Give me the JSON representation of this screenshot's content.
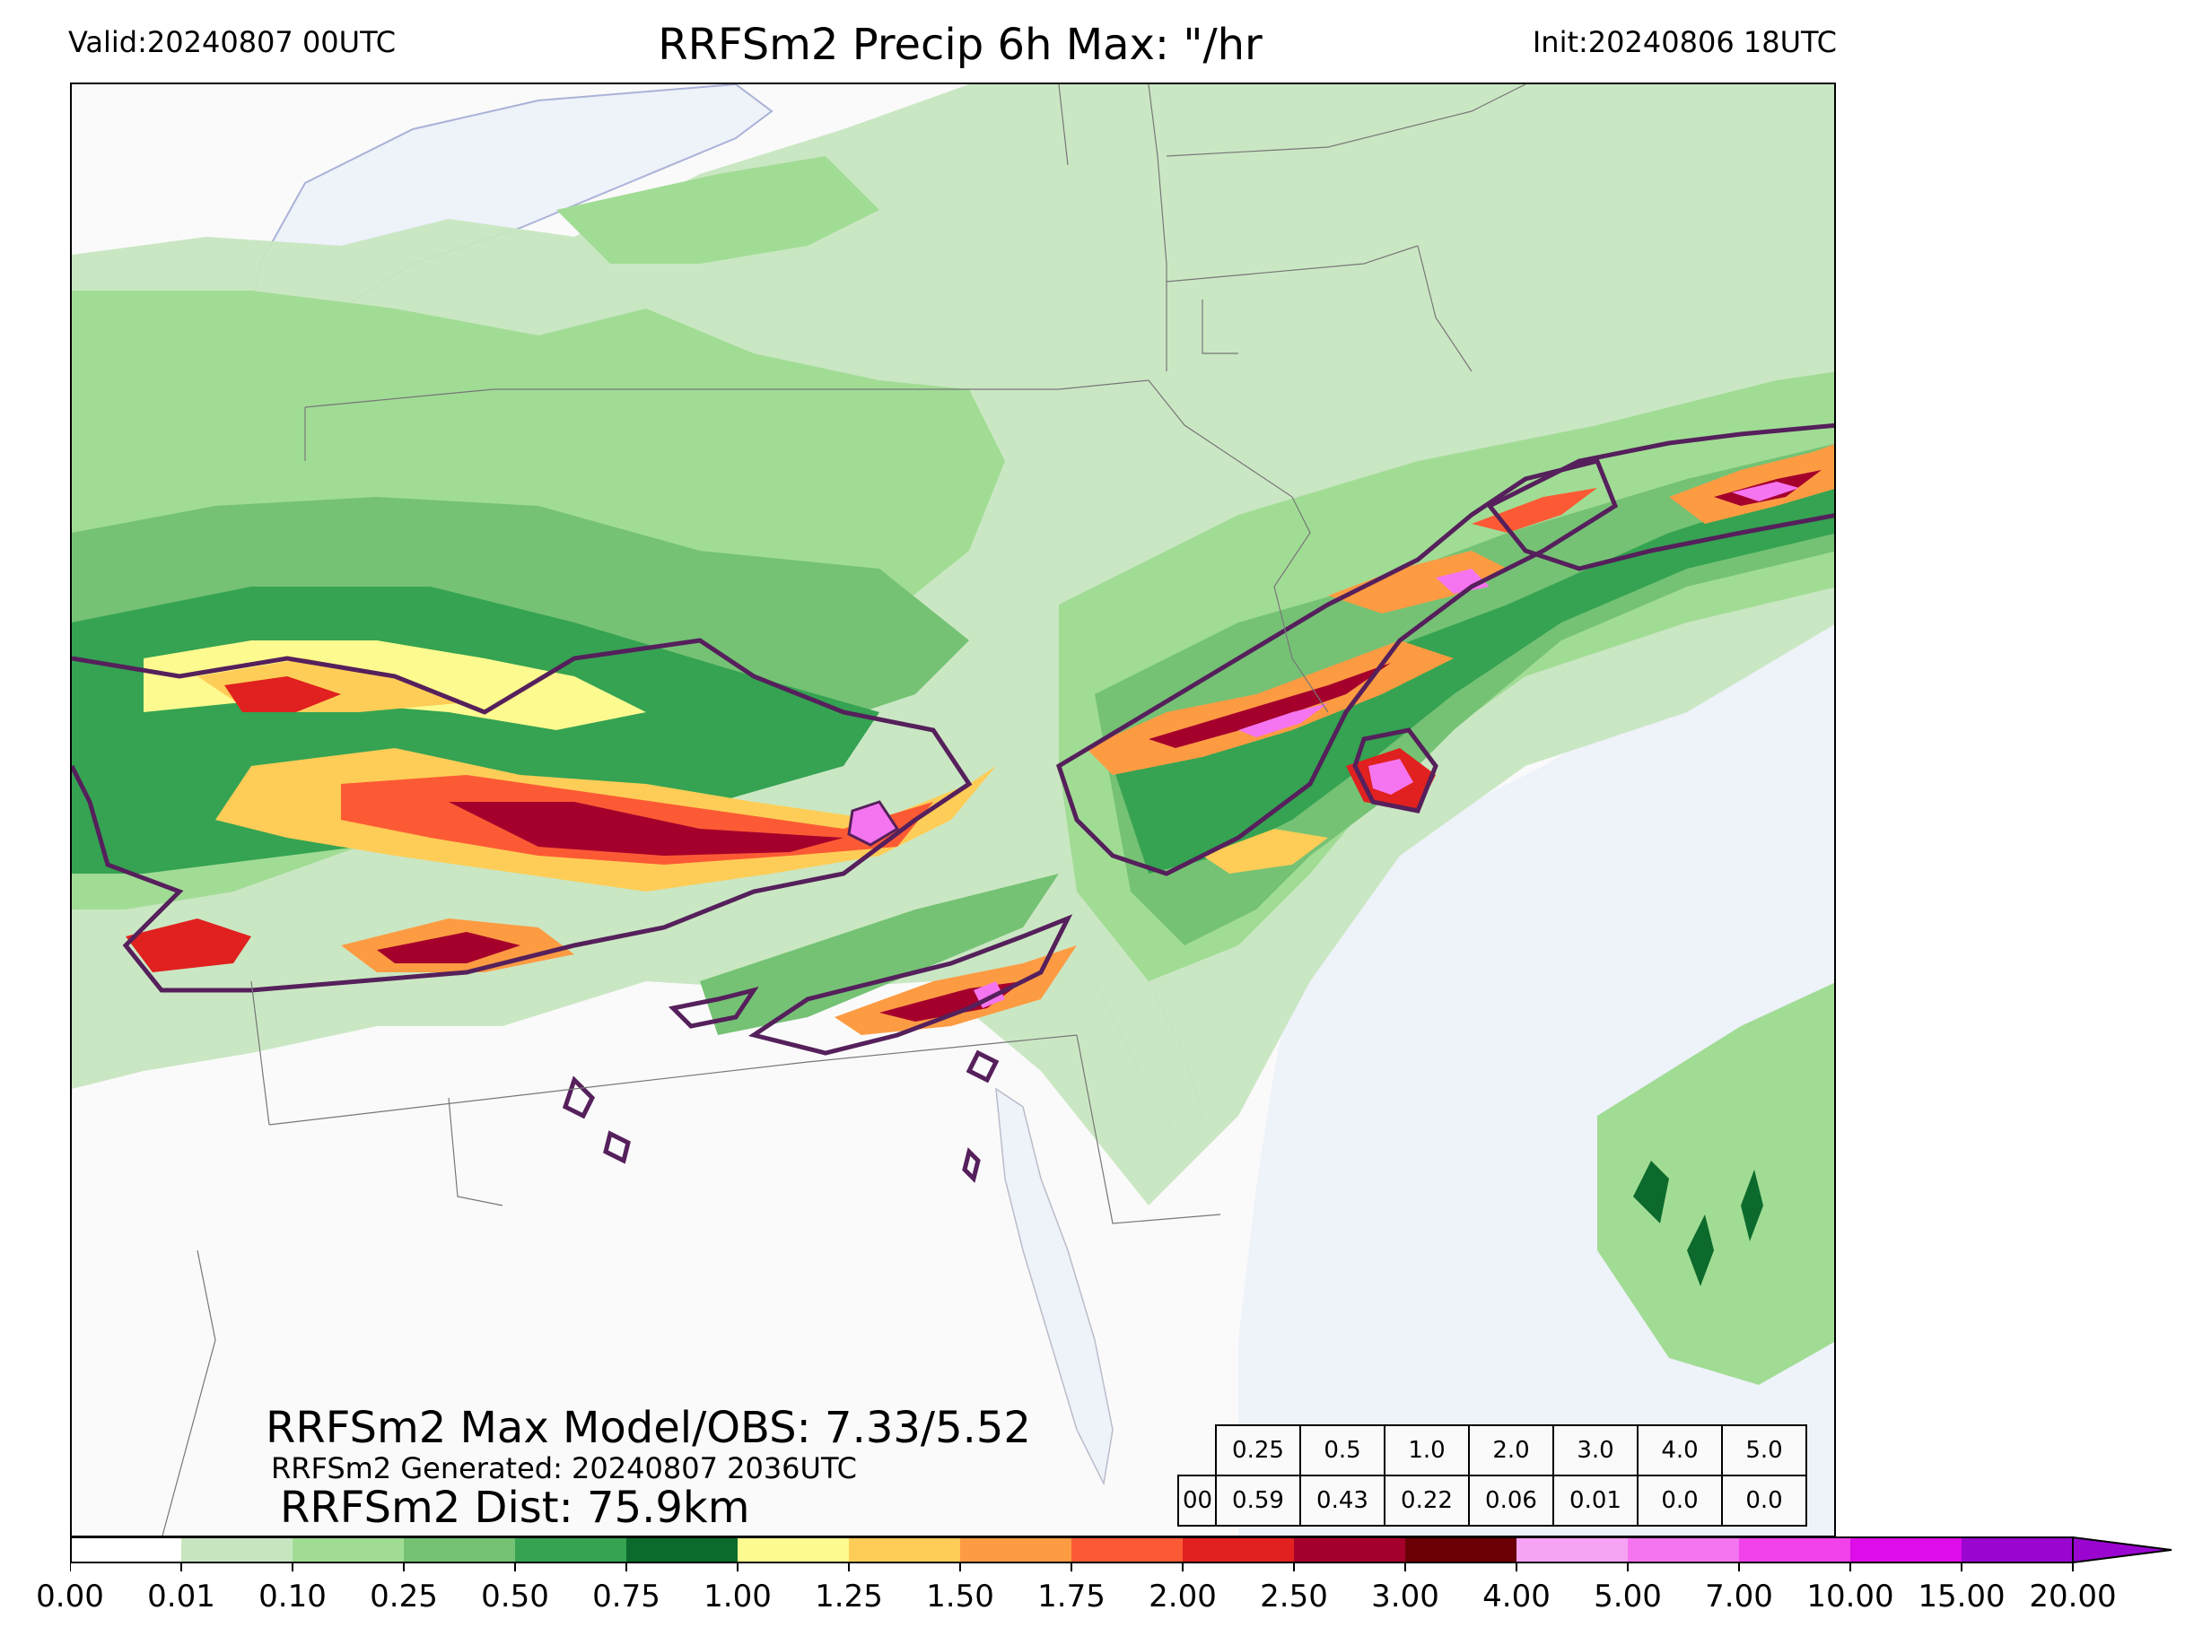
{
  "header": {
    "valid": "Valid:20240807 00UTC",
    "title": "RRFSm2 Precip 6h Max: \"/hr",
    "init": "Init:20240806 18UTC"
  },
  "stats": {
    "max_model_obs": "RRFSm2 Max Model/OBS: 7.33/5.52",
    "generated": "RRFSm2 Generated: 20240807 2036UTC",
    "distance": "RRFSm2 Dist: 75.9km"
  },
  "threshold_table": {
    "thresholds": [
      "0.25",
      "0.5",
      "1.0",
      "2.0",
      "3.0",
      "4.0",
      "5.0"
    ],
    "row_label": "00",
    "values": [
      "0.59",
      "0.43",
      "0.22",
      "0.06",
      "0.01",
      "0.0",
      "0.0"
    ]
  },
  "colorbar": {
    "ticks": [
      "0.00",
      "0.01",
      "0.10",
      "0.25",
      "0.50",
      "0.75",
      "1.00",
      "1.25",
      "1.50",
      "1.75",
      "2.00",
      "2.50",
      "3.00",
      "4.00",
      "5.00",
      "7.00",
      "10.00",
      "15.00",
      "20.00"
    ],
    "colors": [
      "#ffffff",
      "#c7e6c0",
      "#a1dc95",
      "#75c275",
      "#35a352",
      "#0c6b2c",
      "#fdfa8f",
      "#fecd57",
      "#fd9b43",
      "#fc5a34",
      "#e0211f",
      "#a5002c",
      "#6a0006",
      "#f7a3f3",
      "#f475ef",
      "#f041eb",
      "#de0ce8",
      "#9a06d0"
    ]
  },
  "map": {
    "background": "#fafafa",
    "water": "#eef2f9",
    "obs_contour_color": "#55205b"
  }
}
